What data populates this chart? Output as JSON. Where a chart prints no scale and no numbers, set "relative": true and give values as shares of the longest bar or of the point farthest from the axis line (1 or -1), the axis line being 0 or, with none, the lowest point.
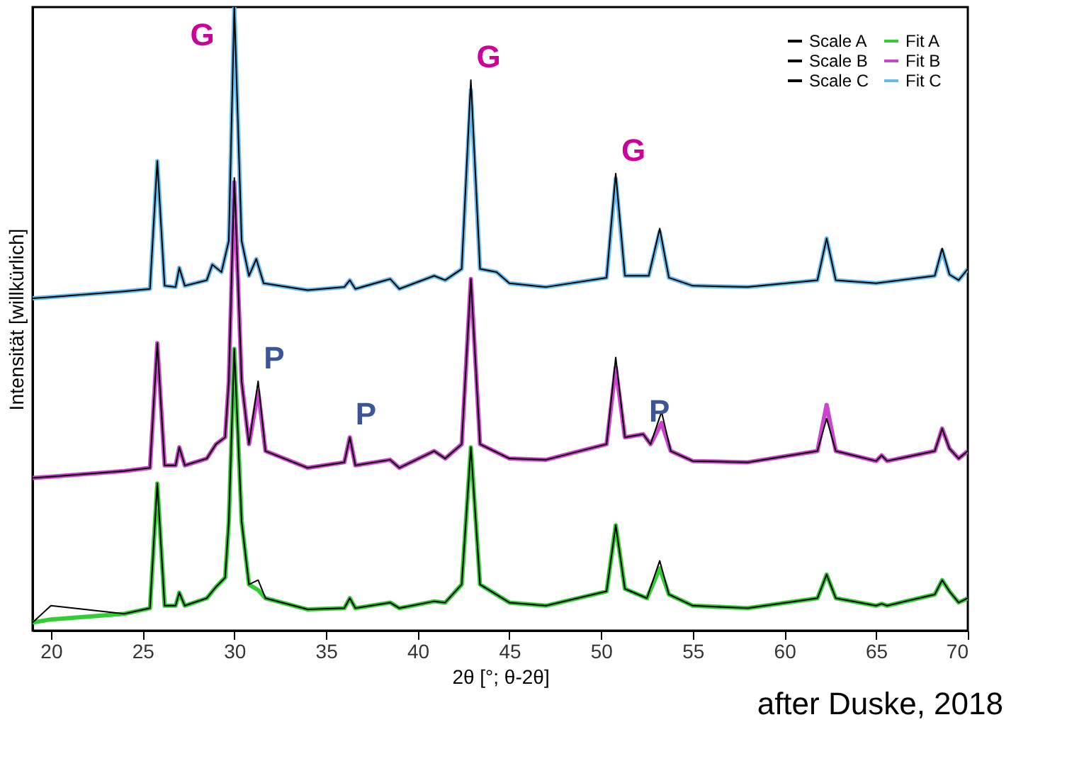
{
  "chart_data": {
    "type": "line",
    "relative": true,
    "xlabel": "2θ [°; θ-2θ]",
    "ylabel": "Intensität [willkürlich]",
    "xlim": [
      19,
      70
    ],
    "xticks": [
      20,
      25,
      30,
      35,
      40,
      45,
      50,
      55,
      60,
      65,
      70
    ],
    "grid": false,
    "legend": "top right",
    "marker": "none",
    "line_style": "solid",
    "series": [
      {
        "name": "Scale A",
        "color": "#000000",
        "x": [
          19,
          20,
          24,
          25.4,
          25.8,
          26.2,
          26.8,
          27,
          27.3,
          28.5,
          29,
          29.5,
          29.7,
          30,
          30.4,
          30.8,
          31.3,
          31.7,
          34,
          36,
          36.3,
          36.6,
          38.5,
          39,
          40.9,
          41.5,
          42.4,
          42.9,
          43.4,
          45,
          47,
          50.3,
          50.8,
          51.3,
          52.5,
          53.2,
          53.7,
          55,
          58,
          61.8,
          62.3,
          62.8,
          65,
          65.3,
          65.6,
          68.2,
          68.6,
          69,
          69.5,
          70
        ],
        "values": [
          0.013,
          0.04,
          0.027,
          0.036,
          0.236,
          0.04,
          0.04,
          0.061,
          0.04,
          0.052,
          0.07,
          0.085,
          0.175,
          0.452,
          0.175,
          0.074,
          0.081,
          0.052,
          0.034,
          0.036,
          0.052,
          0.036,
          0.045,
          0.036,
          0.047,
          0.045,
          0.074,
          0.294,
          0.074,
          0.045,
          0.04,
          0.063,
          0.169,
          0.067,
          0.052,
          0.112,
          0.058,
          0.04,
          0.036,
          0.052,
          0.09,
          0.052,
          0.04,
          0.043,
          0.04,
          0.058,
          0.081,
          0.063,
          0.045,
          0.052
        ]
      },
      {
        "name": "Fit A",
        "color": "#33cc33",
        "x": [
          19,
          20,
          24,
          25.4,
          25.8,
          26.2,
          26.8,
          27,
          27.3,
          28.5,
          29,
          29.5,
          29.7,
          30,
          30.4,
          30.8,
          31.3,
          31.7,
          34,
          36,
          36.3,
          36.6,
          38.5,
          39,
          40.9,
          41.5,
          42.4,
          42.9,
          43.4,
          45,
          47,
          50.3,
          50.8,
          51.3,
          52.5,
          53.2,
          53.7,
          55,
          58,
          61.8,
          62.3,
          62.8,
          65,
          65.3,
          65.6,
          68.2,
          68.6,
          69,
          69.5,
          70
        ],
        "values": [
          0.013,
          0.018,
          0.027,
          0.036,
          0.236,
          0.04,
          0.04,
          0.061,
          0.04,
          0.052,
          0.07,
          0.085,
          0.175,
          0.452,
          0.175,
          0.074,
          0.065,
          0.052,
          0.034,
          0.036,
          0.052,
          0.036,
          0.045,
          0.036,
          0.047,
          0.045,
          0.074,
          0.294,
          0.074,
          0.045,
          0.04,
          0.063,
          0.169,
          0.067,
          0.052,
          0.1,
          0.058,
          0.04,
          0.036,
          0.052,
          0.09,
          0.052,
          0.04,
          0.043,
          0.04,
          0.058,
          0.081,
          0.063,
          0.045,
          0.052
        ]
      },
      {
        "name": "Scale B",
        "color": "#000000",
        "x": [
          19,
          20,
          24,
          25.4,
          25.8,
          26.2,
          26.8,
          27,
          27.3,
          28.5,
          29,
          29.5,
          29.7,
          30,
          30.4,
          30.8,
          31.3,
          31.7,
          34,
          36,
          36.3,
          36.6,
          38.5,
          39,
          40.9,
          41.5,
          42.4,
          42.9,
          43.4,
          45,
          47,
          50.3,
          50.8,
          51.3,
          52.3,
          52.7,
          53.3,
          53.8,
          55,
          58,
          61.8,
          62.3,
          62.8,
          65,
          65.3,
          65.6,
          68.2,
          68.6,
          69,
          69.5,
          70
        ],
        "values": [
          0.245,
          0.247,
          0.256,
          0.261,
          0.461,
          0.265,
          0.265,
          0.294,
          0.265,
          0.276,
          0.299,
          0.31,
          0.4,
          0.726,
          0.4,
          0.299,
          0.4,
          0.288,
          0.261,
          0.27,
          0.31,
          0.265,
          0.274,
          0.261,
          0.288,
          0.276,
          0.299,
          0.564,
          0.299,
          0.276,
          0.274,
          0.299,
          0.438,
          0.31,
          0.315,
          0.299,
          0.351,
          0.288,
          0.272,
          0.27,
          0.288,
          0.34,
          0.288,
          0.272,
          0.281,
          0.272,
          0.288,
          0.324,
          0.292,
          0.276,
          0.288
        ]
      },
      {
        "name": "Fit B",
        "color": "#cc44cc",
        "x": [
          19,
          20,
          24,
          25.4,
          25.8,
          26.2,
          26.8,
          27,
          27.3,
          28.5,
          29,
          29.5,
          29.7,
          30,
          30.4,
          30.8,
          31.3,
          31.7,
          34,
          36,
          36.3,
          36.6,
          38.5,
          39,
          40.9,
          41.5,
          42.4,
          42.9,
          43.4,
          45,
          47,
          50.3,
          50.8,
          51.3,
          52.3,
          52.7,
          53.3,
          53.8,
          55,
          58,
          61.8,
          62.3,
          62.8,
          65,
          65.3,
          65.6,
          68.2,
          68.6,
          69,
          69.5,
          70
        ],
        "values": [
          0.245,
          0.247,
          0.256,
          0.261,
          0.461,
          0.265,
          0.265,
          0.294,
          0.265,
          0.276,
          0.299,
          0.31,
          0.4,
          0.719,
          0.4,
          0.299,
          0.384,
          0.288,
          0.261,
          0.27,
          0.31,
          0.265,
          0.274,
          0.261,
          0.288,
          0.276,
          0.299,
          0.564,
          0.299,
          0.276,
          0.274,
          0.299,
          0.422,
          0.31,
          0.315,
          0.299,
          0.333,
          0.288,
          0.272,
          0.27,
          0.288,
          0.362,
          0.288,
          0.272,
          0.281,
          0.272,
          0.288,
          0.324,
          0.292,
          0.276,
          0.288
        ]
      },
      {
        "name": "Scale C",
        "color": "#000000",
        "x": [
          19,
          20,
          24,
          25.4,
          25.8,
          26.2,
          26.8,
          27,
          27.3,
          28.5,
          28.8,
          29.3,
          29.7,
          30,
          30.4,
          30.8,
          31.2,
          31.6,
          34,
          36,
          36.3,
          36.6,
          38.5,
          39,
          40.9,
          41.5,
          42.4,
          42.9,
          43.4,
          44.3,
          45,
          47,
          50.3,
          50.8,
          51.3,
          52.2,
          52.6,
          53.2,
          53.7,
          55,
          58,
          61.8,
          62.3,
          62.8,
          65,
          68.2,
          68.6,
          69,
          69.5,
          70
        ],
        "values": [
          0.533,
          0.535,
          0.544,
          0.548,
          0.753,
          0.553,
          0.551,
          0.582,
          0.553,
          0.562,
          0.587,
          0.575,
          0.625,
          1.0,
          0.625,
          0.569,
          0.596,
          0.557,
          0.546,
          0.551,
          0.562,
          0.548,
          0.564,
          0.548,
          0.569,
          0.562,
          0.58,
          0.883,
          0.58,
          0.575,
          0.557,
          0.551,
          0.566,
          0.733,
          0.569,
          0.569,
          0.569,
          0.645,
          0.566,
          0.553,
          0.551,
          0.562,
          0.629,
          0.562,
          0.557,
          0.569,
          0.613,
          0.571,
          0.562,
          0.58
        ]
      },
      {
        "name": "Fit C",
        "color": "#66bbee",
        "x": [
          19,
          20,
          24,
          25.4,
          25.8,
          26.2,
          26.8,
          27,
          27.3,
          28.5,
          28.8,
          29.3,
          29.7,
          30,
          30.4,
          30.8,
          31.2,
          31.6,
          34,
          36,
          36.3,
          36.6,
          38.5,
          39,
          40.9,
          41.5,
          42.4,
          42.9,
          43.4,
          44.3,
          45,
          47,
          50.3,
          50.8,
          51.3,
          52.2,
          52.6,
          53.2,
          53.7,
          55,
          58,
          61.8,
          62.3,
          62.8,
          65,
          68.2,
          68.6,
          69,
          69.5,
          70
        ],
        "values": [
          0.533,
          0.535,
          0.544,
          0.548,
          0.753,
          0.553,
          0.551,
          0.582,
          0.553,
          0.562,
          0.587,
          0.575,
          0.625,
          1.0,
          0.625,
          0.569,
          0.596,
          0.557,
          0.546,
          0.551,
          0.562,
          0.548,
          0.564,
          0.548,
          0.569,
          0.562,
          0.58,
          0.867,
          0.58,
          0.575,
          0.557,
          0.551,
          0.566,
          0.725,
          0.569,
          0.569,
          0.569,
          0.64,
          0.566,
          0.553,
          0.551,
          0.562,
          0.629,
          0.562,
          0.557,
          0.569,
          0.61,
          0.571,
          0.562,
          0.58
        ]
      }
    ],
    "annotations": [
      {
        "text": "G",
        "x": 30,
        "y": 1.0
      },
      {
        "text": "G",
        "x": 42.9,
        "y": 0.883
      },
      {
        "text": "G",
        "x": 50.8,
        "y": 0.733
      },
      {
        "text": "P",
        "x": 31.3,
        "y": 0.4
      },
      {
        "text": "P",
        "x": 36.3,
        "y": 0.31
      },
      {
        "text": "P",
        "x": 52.3,
        "y": 0.315
      },
      "after Duske, 2018"
    ]
  }
}
